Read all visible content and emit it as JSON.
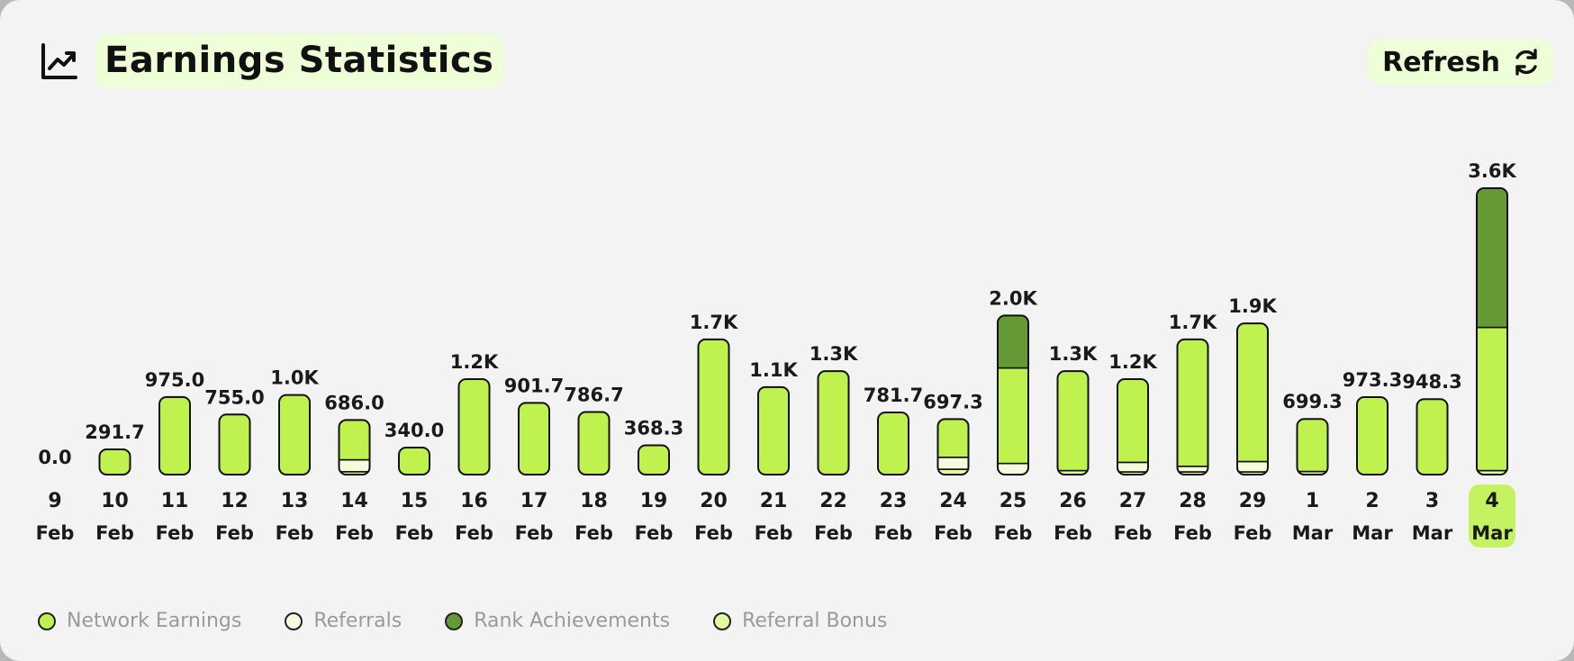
{
  "header": {
    "title": "Earnings Statistics",
    "refresh_label": "Refresh"
  },
  "colors": {
    "network": "#bff24f",
    "referrals": "#f4fbdc",
    "rank": "#659934",
    "bonus": "#e3f9a0",
    "highlight": "#c4f260"
  },
  "chart_data": {
    "type": "bar",
    "stacked": true,
    "title": "Earnings Statistics",
    "categories": [
      "9 Feb",
      "10 Feb",
      "11 Feb",
      "12 Feb",
      "13 Feb",
      "14 Feb",
      "15 Feb",
      "16 Feb",
      "17 Feb",
      "18 Feb",
      "19 Feb",
      "20 Feb",
      "21 Feb",
      "22 Feb",
      "23 Feb",
      "24 Feb",
      "25 Feb",
      "26 Feb",
      "27 Feb",
      "28 Feb",
      "29 Feb",
      "1 Mar",
      "2 Mar",
      "3 Mar",
      "4 Mar"
    ],
    "days": [
      "9",
      "10",
      "11",
      "12",
      "13",
      "14",
      "15",
      "16",
      "17",
      "18",
      "19",
      "20",
      "21",
      "22",
      "23",
      "24",
      "25",
      "26",
      "27",
      "28",
      "29",
      "1",
      "2",
      "3",
      "4"
    ],
    "months": [
      "Feb",
      "Feb",
      "Feb",
      "Feb",
      "Feb",
      "Feb",
      "Feb",
      "Feb",
      "Feb",
      "Feb",
      "Feb",
      "Feb",
      "Feb",
      "Feb",
      "Feb",
      "Feb",
      "Feb",
      "Feb",
      "Feb",
      "Feb",
      "Feb",
      "Mar",
      "Mar",
      "Mar",
      "Mar"
    ],
    "total_labels": [
      "0.0",
      "291.7",
      "975.0",
      "755.0",
      "1.0K",
      "686.0",
      "340.0",
      "1.2K",
      "901.7",
      "786.7",
      "368.3",
      "1.7K",
      "1.1K",
      "1.3K",
      "781.7",
      "697.3",
      "2.0K",
      "1.3K",
      "1.2K",
      "1.7K",
      "1.9K",
      "699.3",
      "973.3",
      "948.3",
      "3.6K"
    ],
    "totals": [
      0,
      291.7,
      975.0,
      755.0,
      1000,
      686.0,
      340.0,
      1200,
      901.7,
      786.7,
      368.3,
      1700,
      1100,
      1300,
      781.7,
      697.3,
      2000,
      1300,
      1200,
      1700,
      1900,
      699.3,
      973.3,
      948.3,
      3600
    ],
    "series": [
      {
        "name": "Network Earnings",
        "key": "network",
        "values": [
          0,
          291.7,
          975.0,
          755.0,
          1000,
          500,
          340.0,
          1200,
          901.7,
          786.7,
          368.3,
          1700,
          1100,
          1300,
          781.7,
          480,
          1200,
          1250,
          1050,
          1600,
          1750,
          660,
          973.3,
          948.3,
          1800
        ]
      },
      {
        "name": "Referrals",
        "key": "referrals",
        "values": [
          0,
          0,
          0,
          0,
          0,
          150,
          0,
          0,
          0,
          0,
          0,
          0,
          0,
          0,
          0,
          150,
          140,
          0,
          120,
          70,
          130,
          0,
          0,
          0,
          0
        ]
      },
      {
        "name": "Rank Achievements",
        "key": "rank",
        "values": [
          0,
          0,
          0,
          0,
          0,
          0,
          0,
          0,
          0,
          0,
          0,
          0,
          0,
          0,
          0,
          0,
          660,
          0,
          0,
          0,
          0,
          0,
          0,
          0,
          1750
        ]
      },
      {
        "name": "Referral Bonus",
        "key": "bonus",
        "values": [
          0,
          0,
          0,
          0,
          0,
          36,
          0,
          0,
          0,
          0,
          0,
          0,
          0,
          0,
          0,
          67,
          0,
          50,
          30,
          30,
          20,
          39,
          0,
          0,
          50
        ]
      }
    ],
    "highlighted_category": "4 Mar",
    "xlabel": "",
    "ylabel": "",
    "ylim": [
      0,
      3600
    ],
    "grid": false,
    "legend": "bottom-left"
  }
}
